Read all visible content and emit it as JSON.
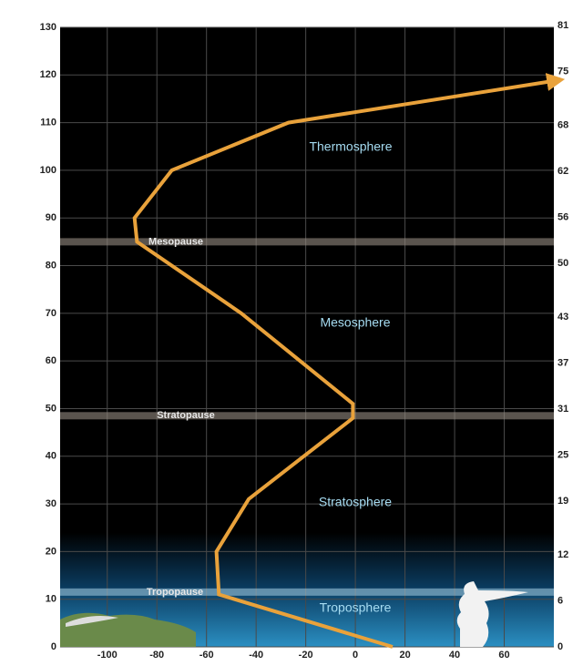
{
  "chart_data": {
    "type": "line",
    "series": [
      {
        "color": "#e9a23b",
        "x": [
          15,
          -55,
          -56,
          -43,
          -1,
          -1,
          -46,
          -88,
          -89,
          -74,
          -27,
          83
        ],
        "values": [
          0,
          11,
          20,
          31,
          48,
          51,
          70,
          85,
          90,
          100,
          110,
          119
        ]
      }
    ],
    "xlim": [
      -119,
      80
    ],
    "xticks": [
      -100,
      -80,
      -60,
      -40,
      -20,
      0,
      20,
      40,
      60
    ],
    "ylim": [
      0,
      130
    ],
    "yticks": [
      0,
      10,
      20,
      30,
      40,
      50,
      60,
      70,
      80,
      90,
      100,
      110,
      120,
      130
    ],
    "y2lim": [
      0,
      80.78
    ],
    "y2ticks": [
      0,
      6,
      12,
      19,
      25,
      31,
      37,
      43,
      50,
      56,
      62,
      68,
      75,
      81
    ],
    "grid": true,
    "layers": [
      "Thermosphere",
      "Mesosphere",
      "Stratosphere",
      "Troposphere"
    ],
    "boundaries": [
      {
        "name": "Mesopause",
        "altitude": 85
      },
      {
        "name": "Stratopause",
        "altitude": 48.5
      },
      {
        "name": "Tropopause",
        "altitude": 11.5
      }
    ]
  }
}
